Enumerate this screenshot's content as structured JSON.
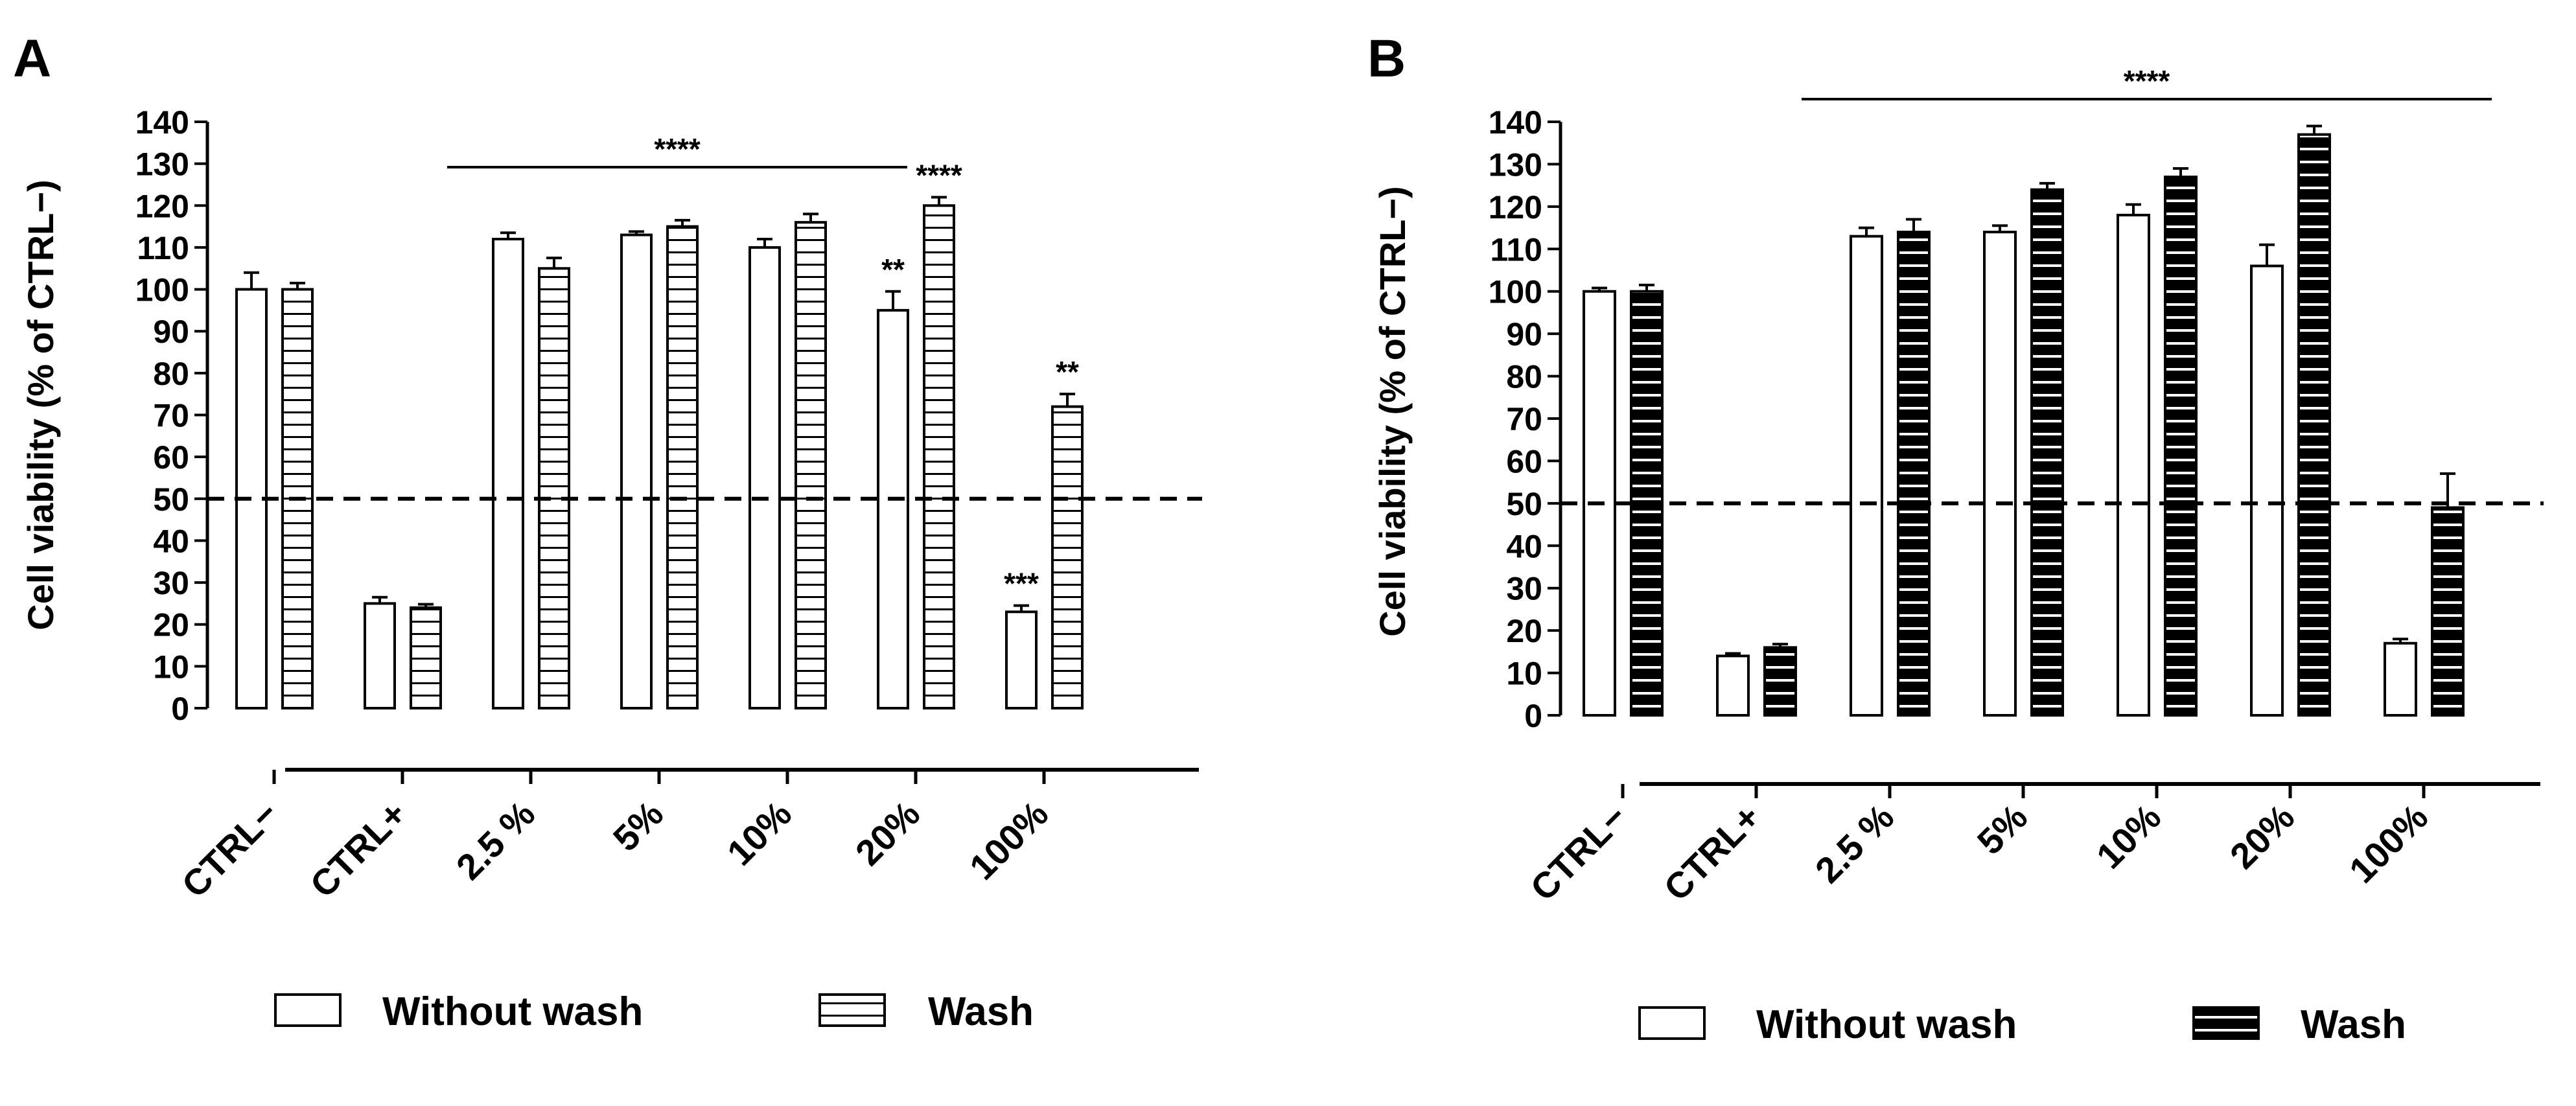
{
  "chart_data": [
    {
      "panel_label": "A",
      "type": "bar",
      "ylabel": "Cell viability (% of CTRL−)",
      "ylim": [
        0,
        140
      ],
      "yticks": [
        0,
        10,
        20,
        30,
        40,
        50,
        60,
        70,
        80,
        90,
        100,
        110,
        120,
        130,
        140
      ],
      "categories": [
        "CTRL−",
        "CTRL+",
        "2.5 %",
        "5%",
        "10%",
        "20%",
        "100%"
      ],
      "series": [
        {
          "name": "Without wash",
          "values": [
            100,
            25,
            112,
            113,
            110,
            95,
            23
          ],
          "errors": [
            4,
            1.5,
            1.5,
            0.8,
            2,
            4.5,
            1.5
          ]
        },
        {
          "name": "Wash",
          "values": [
            100,
            24,
            105,
            115,
            116,
            120,
            72
          ],
          "errors": [
            1.5,
            0.8,
            2.5,
            1.5,
            2,
            2,
            3
          ]
        }
      ],
      "reference_line": 50,
      "significance_bar": {
        "label": "****",
        "from": 1,
        "to": 4
      },
      "annotations": [
        {
          "label": "**",
          "category": 5,
          "series": 0
        },
        {
          "label": "****",
          "category": 5,
          "series": 1
        },
        {
          "label": "***",
          "category": 6,
          "series": 0
        },
        {
          "label": "**",
          "category": 6,
          "series": 1
        }
      ],
      "legend": [
        {
          "name": "Without wash",
          "fill": "white"
        },
        {
          "name": "Wash",
          "fill": "hstripe-white"
        }
      ]
    },
    {
      "panel_label": "B",
      "type": "bar",
      "ylabel": "Cell viability (% of CTRL−)",
      "ylim": [
        0,
        140
      ],
      "yticks": [
        0,
        10,
        20,
        30,
        40,
        50,
        60,
        70,
        80,
        90,
        100,
        110,
        120,
        130,
        140
      ],
      "categories": [
        "CTRL−",
        "CTRL+",
        "2.5 %",
        "5%",
        "10%",
        "20%",
        "100%"
      ],
      "series": [
        {
          "name": "Without wash",
          "values": [
            100,
            14,
            113,
            114,
            118,
            106,
            17
          ],
          "errors": [
            0.8,
            0.6,
            2,
            1.5,
            2.5,
            5,
            1
          ]
        },
        {
          "name": "Wash",
          "values": [
            100,
            16,
            114,
            124,
            127,
            137,
            49
          ],
          "errors": [
            1.5,
            0.8,
            3,
            1.5,
            2,
            2,
            8
          ]
        }
      ],
      "reference_line": 50,
      "significance_bar": {
        "label": "****",
        "from": 1,
        "to": 6
      },
      "annotations": [],
      "legend": [
        {
          "name": "Without wash",
          "fill": "white"
        },
        {
          "name": "Wash",
          "fill": "hstripe-black"
        }
      ]
    }
  ],
  "colors": {
    "stroke": "#000000",
    "background": "#ffffff",
    "stripe_dark": "#000000",
    "stripe_light": "#ffffff"
  }
}
